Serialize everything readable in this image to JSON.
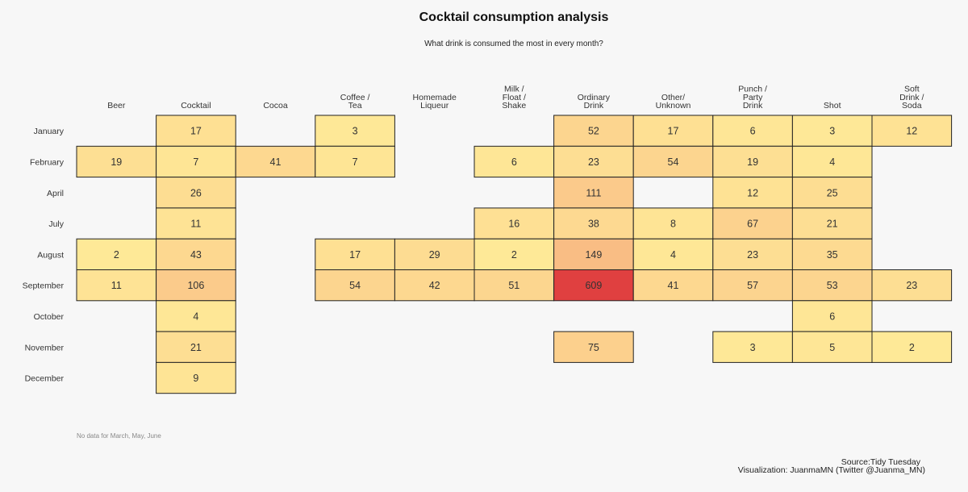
{
  "chart_data": {
    "type": "heatmap",
    "title": "Cocktail consumption analysis",
    "subtitle": "What drink is consumed the most in every month?",
    "columns": [
      [
        "Beer"
      ],
      [
        "Cocktail"
      ],
      [
        "Cocoa"
      ],
      [
        "Coffee /",
        "Tea"
      ],
      [
        "Homemade",
        "Liqueur"
      ],
      [
        "Milk /",
        "Float /",
        "Shake"
      ],
      [
        "Ordinary",
        "Drink"
      ],
      [
        "Other/",
        "Unknown"
      ],
      [
        "Punch /",
        "Party",
        "Drink"
      ],
      [
        "Shot"
      ],
      [
        "Soft",
        "Drink /",
        "Soda"
      ]
    ],
    "rows": [
      "January",
      "February",
      "April",
      "July",
      "August",
      "September",
      "October",
      "November",
      "December"
    ],
    "values": [
      [
        null,
        17,
        null,
        3,
        null,
        null,
        52,
        17,
        6,
        3,
        12
      ],
      [
        19,
        7,
        41,
        7,
        null,
        6,
        23,
        54,
        19,
        4,
        null
      ],
      [
        null,
        26,
        null,
        null,
        null,
        null,
        111,
        null,
        12,
        25,
        null
      ],
      [
        null,
        11,
        null,
        null,
        null,
        16,
        38,
        8,
        67,
        21,
        null
      ],
      [
        2,
        43,
        null,
        17,
        29,
        2,
        149,
        4,
        23,
        35,
        null
      ],
      [
        11,
        106,
        null,
        54,
        42,
        51,
        609,
        41,
        57,
        53,
        23
      ],
      [
        null,
        4,
        null,
        null,
        null,
        null,
        null,
        null,
        null,
        6,
        null
      ],
      [
        null,
        21,
        null,
        null,
        null,
        null,
        75,
        null,
        3,
        5,
        2
      ],
      [
        null,
        9,
        null,
        null,
        null,
        null,
        null,
        null,
        null,
        null,
        null
      ]
    ],
    "color_scale": {
      "low": "#ffee99",
      "mid": "#fbc88a",
      "high": "#e04040"
    }
  },
  "note": "No data for March, May, June",
  "source": {
    "line1": "Source:Tidy Tuesday",
    "line2": "Visualization: JuanmaMN (Twitter @Juanma_MN)"
  }
}
